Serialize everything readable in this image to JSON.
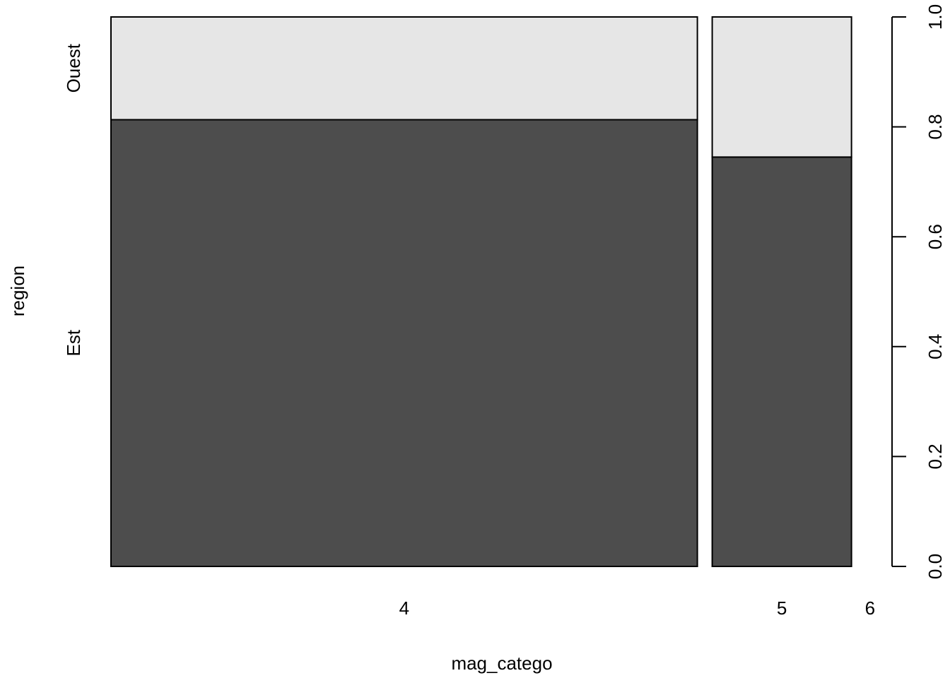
{
  "chart_data": {
    "type": "spineplot",
    "xlabel": "mag_catego",
    "ylabel": "region",
    "categories": [
      "4",
      "5",
      "6"
    ],
    "category_widths": [
      0.8,
      0.19,
      0.01
    ],
    "series": [
      {
        "name": "Est",
        "values": [
          0.813,
          0.745,
          0.0
        ],
        "color": "#4d4d4d"
      },
      {
        "name": "Ouest",
        "values": [
          0.187,
          0.255,
          0.0
        ],
        "color": "#e6e6e6"
      }
    ],
    "right_axis": {
      "ylim": [
        0,
        1
      ],
      "ticks": [
        "0.0",
        "0.2",
        "0.4",
        "0.6",
        "0.8",
        "1.0"
      ]
    }
  }
}
